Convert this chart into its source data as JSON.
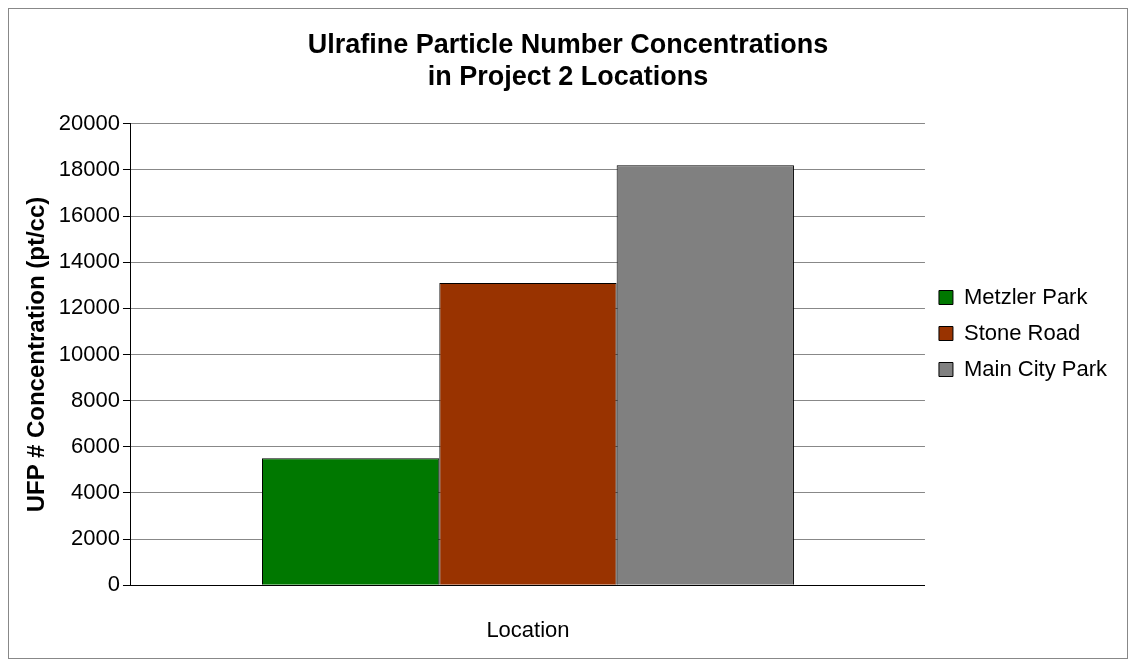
{
  "chart_data": {
    "type": "bar",
    "title": [
      "Ulrafine Particle Number Concentrations",
      "in Project 2 Locations"
    ],
    "xlabel": "Location",
    "ylabel": "UFP # Concentration (pt/cc)",
    "categories": [
      null
    ],
    "series": [
      {
        "name": "Metzler Park",
        "color": "#007800",
        "values": [
          5500
        ]
      },
      {
        "name": "Stone Road",
        "color": "#993300",
        "values": [
          13100
        ]
      },
      {
        "name": "Main City Park",
        "color": "#808080",
        "values": [
          18200
        ]
      }
    ],
    "ylim": [
      0,
      20000
    ],
    "yticks": [
      0,
      2000,
      4000,
      6000,
      8000,
      10000,
      12000,
      14000,
      16000,
      18000,
      20000
    ],
    "grid": "y",
    "legend": "right"
  }
}
